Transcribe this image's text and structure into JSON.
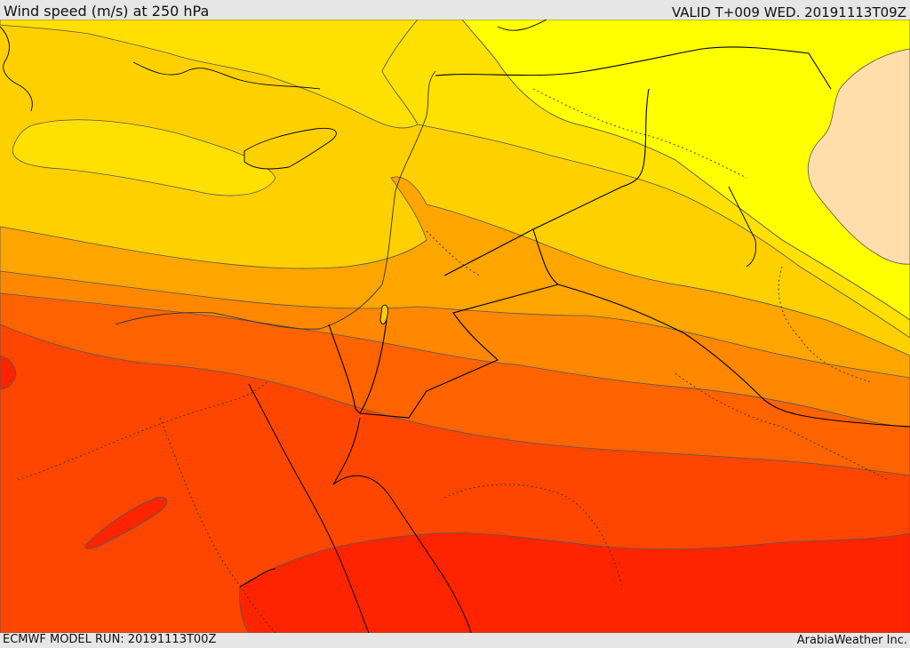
{
  "header": {
    "title": "Wind speed (m/s) at 250 hPa",
    "valid": "VALID T+009 WED. 20191113T09Z"
  },
  "footer": {
    "model_run": "ECMWF MODEL RUN: 20191113T00Z",
    "credit": "ArabiaWeather Inc."
  },
  "map": {
    "colors": {
      "band_1": "#ffffff",
      "band_2": "#ffdfaa",
      "band_3": "#ffff00",
      "band_4": "#ffe100",
      "band_5": "#ffc200",
      "band_6": "#ffa400",
      "band_7": "#ff8400",
      "band_8": "#ff6200",
      "band_9": "#ff4500",
      "band_10": "#ff2400",
      "contour_line": "#555555",
      "boundary_line": "#000000"
    }
  }
}
